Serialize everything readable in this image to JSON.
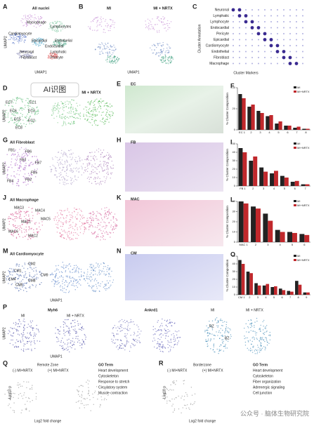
{
  "panels": {
    "A": {
      "letter": "A",
      "title": "All nuclei",
      "labels": [
        "Macrophage",
        "Lymphocytes",
        "Cardiomyocyte",
        "Epicardial",
        "Endothelial",
        "Endocardial",
        "Neuronal",
        "Lymphatic",
        "Fibroblast",
        "Pericyte"
      ],
      "xlabel": "UMAP1",
      "ylabel": "UMAP2"
    },
    "B": {
      "letter": "B",
      "labels": [
        "MI",
        "MI + NRTX"
      ],
      "xlabel": "UMAP1"
    },
    "C": {
      "letter": "C",
      "rows": [
        "Neuronal",
        "Lymphatic",
        "Lymphocyte",
        "Endocardial",
        "Pericyte",
        "Epicardial",
        "Cardiomyocyte",
        "Endothelial",
        "Fibroblast",
        "Macrophage"
      ],
      "ylabel": "Cluster Annotation",
      "xlabel": "Cluster Markers"
    },
    "D": {
      "letter": "D",
      "labels": [
        "MI + NRTX",
        "EC7",
        "EC6",
        "EC1",
        "EC3",
        "EC5",
        "EC2",
        "EC8"
      ],
      "ylabel": "UMAP2"
    },
    "E": {
      "letter": "E",
      "label": "EC"
    },
    "G": {
      "letter": "G",
      "title": "All Fibroblast",
      "labels": [
        "FB1",
        "FB6",
        "FB3",
        "FB7",
        "FB5",
        "FB2",
        "FB4"
      ],
      "ylabel": "UMAP2"
    },
    "H": {
      "letter": "H",
      "label": "FB"
    },
    "J": {
      "letter": "J",
      "title": "All Macrophage",
      "labels": [
        "MAC3",
        "MAC4",
        "MAC1",
        "MAC5",
        "MAC6",
        "MAC2"
      ],
      "ylabel": "UMAP2"
    },
    "K": {
      "letter": "K",
      "label": "MAC"
    },
    "M": {
      "letter": "M",
      "title": "All Cardiomyocyte",
      "labels": [
        "CM2",
        "CM1",
        "CM9",
        "CM4",
        "CM5",
        "CM8"
      ],
      "xlabel": "UMAP1",
      "ylabel": "UMAP2"
    },
    "N": {
      "letter": "N",
      "label": "CM"
    },
    "P": {
      "letter": "P",
      "labels": [
        "Myh6",
        "Ankrd1",
        "MI",
        "MI + NRTX",
        "MI",
        "MI + NRTX",
        "RZ",
        "BZ"
      ],
      "xlabel": "UMAP1",
      "ylabel": "UMAP2"
    },
    "Q": {
      "letter": "Q",
      "title": "Remote Zone",
      "labels": [
        "(-) MI+NRTX",
        "(+) MI+NRTX",
        "GO Term",
        "Heart development",
        "Cytoskeleton",
        "Response to stretch",
        "Circulatory system",
        "Muscle contraction"
      ],
      "xlabel": "Log2 fold change",
      "ylabel": "-Log10 p"
    },
    "R": {
      "letter": "R",
      "title": "Borderzone",
      "labels": [
        "(-) MI+NRTX",
        "(+) MI+NRTX",
        "GO Term",
        "Heart development",
        "Cytoskeleton",
        "Fiber organization",
        "Adrenergic signaling",
        "Cell junction"
      ],
      "xlabel": "Log2 fold change",
      "ylabel": "-Log10 p"
    }
  },
  "overlay": "AI识图",
  "watermark": "公众号 · 脑体生物研究院",
  "charts": [
    {
      "letter": "F",
      "type": "bar",
      "ylabel": "% Cluster Composition",
      "categories": [
        "EC 1",
        "2",
        "3",
        "4",
        "5",
        "6",
        "7",
        "8"
      ],
      "ylim": [
        0,
        40
      ],
      "yticks": [
        0,
        20,
        40
      ],
      "series": [
        {
          "name": "MI",
          "color": "#222222",
          "values": [
            34,
            22,
            18,
            13,
            6,
            4,
            2,
            1
          ]
        },
        {
          "name": "MI+NRTX",
          "color": "#c0282c",
          "values": [
            30,
            24,
            16,
            14,
            8,
            4,
            3,
            1
          ]
        }
      ]
    },
    {
      "letter": "I",
      "type": "bar",
      "ylabel": "% Cluster Composition",
      "categories": [
        "FB 1",
        "2",
        "3",
        "4",
        "5",
        "6",
        "7"
      ],
      "ylim": [
        0,
        50
      ],
      "yticks": [
        0,
        10,
        20,
        30,
        40,
        50
      ],
      "series": [
        {
          "name": "MI",
          "color": "#222222",
          "values": [
            45,
            30,
            22,
            15,
            12,
            5,
            2
          ]
        },
        {
          "name": "MI+NRTX",
          "color": "#c0282c",
          "values": [
            40,
            35,
            17,
            18,
            10,
            6,
            2
          ]
        }
      ]
    },
    {
      "letter": "L",
      "type": "bar",
      "ylabel": "% Cluster Composition",
      "categories": [
        "MAC 1",
        "2",
        "3",
        "4",
        "5",
        "6"
      ],
      "ylim": [
        0,
        40
      ],
      "yticks": [
        0,
        10,
        20,
        30,
        40
      ],
      "series": [
        {
          "name": "MI",
          "color": "#222222",
          "values": [
            40,
            35,
            28,
            12,
            10,
            8
          ]
        },
        {
          "name": "MI+NRTX",
          "color": "#c0282c",
          "values": [
            38,
            33,
            21,
            10,
            9,
            7
          ]
        }
      ]
    },
    {
      "letter": "O",
      "type": "bar",
      "ylabel": "% Cluster Composition",
      "categories": [
        "CM 1",
        "2",
        "3",
        "4",
        "5",
        "6",
        "7",
        "8",
        "9"
      ],
      "ylim": [
        0,
        50
      ],
      "yticks": [
        0,
        10,
        20,
        30,
        40,
        50
      ],
      "series": [
        {
          "name": "MI",
          "color": "#222222",
          "values": [
            45,
            30,
            15,
            12,
            10,
            8,
            5,
            18,
            3
          ]
        },
        {
          "name": "MI+NRTX",
          "color": "#c0282c",
          "values": [
            40,
            28,
            12,
            14,
            11,
            6,
            4,
            13,
            3
          ]
        }
      ]
    }
  ]
}
